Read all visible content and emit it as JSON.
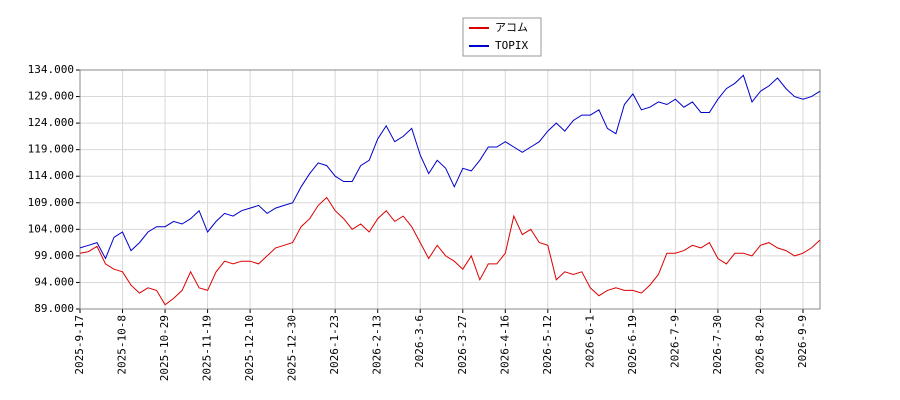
{
  "chart_data": {
    "type": "line",
    "categories": [
      "2025-9-17",
      null,
      null,
      null,
      null,
      "2025-10-8",
      null,
      null,
      null,
      null,
      "2025-10-29",
      null,
      null,
      null,
      null,
      "2025-11-19",
      null,
      null,
      null,
      null,
      "2025-12-10",
      null,
      null,
      null,
      null,
      "2025-12-30",
      null,
      null,
      null,
      null,
      "2026-1-23",
      null,
      null,
      null,
      null,
      "2026-2-13",
      null,
      null,
      null,
      null,
      "2026-3-6",
      null,
      null,
      null,
      null,
      "2026-3-27",
      null,
      null,
      null,
      null,
      "2026-4-16",
      null,
      null,
      null,
      null,
      "2026-5-12",
      null,
      null,
      null,
      null,
      "2026-6-1",
      null,
      null,
      null,
      null,
      "2026-6-19",
      null,
      null,
      null,
      null,
      "2026-7-9",
      null,
      null,
      null,
      null,
      "2026-7-30",
      null,
      null,
      null,
      null,
      "2026-8-20",
      null,
      null,
      null,
      null,
      "2026-9-9",
      null,
      null
    ],
    "series": [
      {
        "name": "アコム",
        "color": "#dd0000",
        "values": [
          99.5,
          99.8,
          100.8,
          97.5,
          96.5,
          96,
          93.5,
          92,
          93,
          92.5,
          89.8,
          91,
          92.5,
          96,
          93,
          92.5,
          96,
          98,
          97.5,
          98,
          98,
          97.5,
          99,
          100.5,
          101,
          101.5,
          104.5,
          106,
          108.5,
          110,
          107.5,
          106,
          104,
          105,
          103.5,
          106,
          107.5,
          105.5,
          106.5,
          104.5,
          101.5,
          98.5,
          101,
          99,
          98,
          96.5,
          99,
          94.5,
          97.5,
          97.5,
          99.5,
          106.5,
          103,
          104,
          101.5,
          101,
          94.5,
          96,
          95.5,
          96,
          93,
          91.5,
          92.5,
          93,
          92.5,
          92.5,
          92,
          93.5,
          95.5,
          99.5,
          99.5,
          100,
          101,
          100.5,
          101.5,
          98.5,
          97.5,
          99.5,
          99.5,
          99,
          101,
          101.5,
          100.5,
          100,
          99,
          99.5,
          100.5,
          102
        ]
      },
      {
        "name": "TOPIX",
        "color": "#0000cc",
        "values": [
          100.5,
          101,
          101.5,
          98.5,
          102.5,
          103.5,
          100,
          101.5,
          103.5,
          104.5,
          104.5,
          105.5,
          105,
          106,
          107.5,
          103.5,
          105.5,
          107,
          106.5,
          107.5,
          108,
          108.5,
          107,
          108,
          108.5,
          109,
          112,
          114.5,
          116.5,
          116,
          114,
          113,
          113,
          116,
          117,
          121,
          123.5,
          120.5,
          121.5,
          123,
          118,
          114.5,
          117,
          115.5,
          112,
          115.5,
          115,
          117,
          119.5,
          119.5,
          120.5,
          119.5,
          118.5,
          119.5,
          120.5,
          122.5,
          124,
          122.5,
          124.5,
          125.5,
          125.5,
          126.5,
          123,
          122,
          127.5,
          129.5,
          126.5,
          127,
          128,
          127.5,
          128.5,
          127,
          128,
          126,
          126,
          128.5,
          130.5,
          131.5,
          133,
          128,
          130,
          131,
          132.5,
          130.5,
          129,
          128.5,
          129,
          130
        ]
      }
    ],
    "ylim": [
      89,
      134
    ],
    "yticks": [
      {
        "value": 89,
        "label": "89.000"
      },
      {
        "value": 94,
        "label": "94.000"
      },
      {
        "value": 99,
        "label": "99.000"
      },
      {
        "value": 104,
        "label": "104.000"
      },
      {
        "value": 109,
        "label": "109.000"
      },
      {
        "value": 114,
        "label": "114.000"
      },
      {
        "value": 119,
        "label": "119.000"
      },
      {
        "value": 124,
        "label": "124.000"
      },
      {
        "value": 129,
        "label": "129.000"
      },
      {
        "value": 134,
        "label": "134.000"
      }
    ],
    "grid": true,
    "legend": "top"
  }
}
